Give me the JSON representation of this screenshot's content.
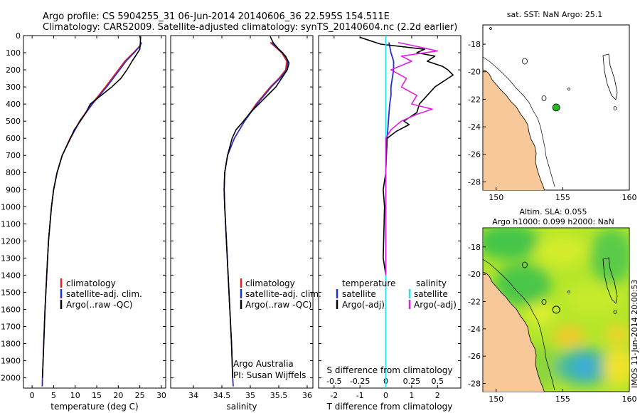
{
  "header": {
    "line1": "Argo profile: CS 5904255_31 06-Jun-2014 20140606_36 22.595S 154.511E",
    "line2": "Climatology: CARS2009. Satellite-adjusted climatology: synTS_20140604.nc (2.2d earlier)"
  },
  "colors": {
    "climatology": "#e8201c",
    "satellite": "#1e2fd6",
    "argo": "#000000",
    "salinity_sat": "#22e6e6",
    "salinity_argo": "#e020e0",
    "land": "#f7c99a"
  },
  "credit": {
    "institution": "Argo Australia",
    "pi": "PI: Susan Wijffels"
  },
  "timestamp": "IMOS 11-Jun-2014 20:00:53",
  "chart_data": [
    {
      "id": "temperature",
      "type": "line",
      "xlabel": "temperature (deg C)",
      "ylabel": "",
      "xlim": [
        -2,
        31
      ],
      "ylim": [
        2060,
        0
      ],
      "xticks": [
        0,
        5,
        10,
        15,
        20,
        25,
        30
      ],
      "yticks": [
        0,
        100,
        200,
        300,
        400,
        500,
        600,
        700,
        800,
        900,
        1000,
        1100,
        1200,
        1300,
        1400,
        1500,
        1600,
        1700,
        1800,
        1900,
        2000
      ],
      "legend": [
        "climatology",
        "satellite-adj. clim.",
        "Argo(..raw -QC)"
      ],
      "series": [
        {
          "name": "climatology",
          "color": "#e8201c",
          "depth": [
            40,
            60,
            100,
            150,
            200,
            300,
            400,
            500,
            600,
            700,
            800,
            900,
            1000,
            1200,
            1400,
            1600,
            1800,
            2000,
            2050
          ],
          "values": [
            25.3,
            25.0,
            23.5,
            21.5,
            20.0,
            17.0,
            13.8,
            11.0,
            8.8,
            7.0,
            5.8,
            5.0,
            4.5,
            3.8,
            3.4,
            3.0,
            2.7,
            2.4,
            2.35
          ]
        },
        {
          "name": "satellite-adj. clim.",
          "color": "#1e2fd6",
          "depth": [
            40,
            60,
            100,
            150,
            200,
            300,
            400,
            500,
            600,
            700,
            800,
            900,
            1000,
            1200,
            1400,
            1600,
            1800,
            2000,
            2050
          ],
          "values": [
            25.4,
            25.1,
            23.7,
            21.8,
            20.3,
            17.3,
            14.0,
            11.1,
            8.9,
            7.0,
            5.8,
            5.0,
            4.5,
            3.8,
            3.4,
            3.0,
            2.7,
            2.4,
            2.35
          ]
        },
        {
          "name": "Argo(..raw -QC)",
          "color": "#000000",
          "depth": [
            5,
            50,
            80,
            100,
            150,
            200,
            250,
            300,
            350,
            400,
            450,
            500,
            550,
            600,
            700,
            800,
            900,
            1000,
            1200,
            1400,
            1600,
            1800,
            2000
          ],
          "values": [
            25.2,
            25.1,
            25.0,
            24.5,
            23.2,
            22.0,
            20.6,
            18.5,
            16.0,
            13.5,
            12.5,
            11.2,
            9.8,
            8.9,
            7.0,
            5.8,
            5.0,
            4.5,
            3.8,
            3.4,
            3.0,
            2.7,
            2.4
          ]
        }
      ]
    },
    {
      "id": "salinity",
      "type": "line",
      "xlabel": "salinity",
      "xlim": [
        33.6,
        36.1
      ],
      "ylim": [
        2060,
        0
      ],
      "xticks": [
        34,
        34.5,
        35,
        35.5,
        36
      ],
      "legend": [
        "climatology",
        "satellite-adj. clim.",
        "Argo(..raw -QC)"
      ],
      "series": [
        {
          "name": "climatology",
          "color": "#e8201c",
          "depth": [
            40,
            100,
            150,
            200,
            250,
            300,
            400,
            500,
            600,
            700,
            800,
            900,
            1000,
            1200,
            1400,
            1600,
            1800,
            2000,
            2050
          ],
          "values": [
            35.35,
            35.55,
            35.64,
            35.62,
            35.5,
            35.35,
            35.1,
            34.9,
            34.72,
            34.6,
            34.55,
            34.54,
            34.55,
            34.58,
            34.61,
            34.64,
            34.67,
            34.69,
            34.7
          ]
        },
        {
          "name": "satellite-adj. clim.",
          "color": "#1e2fd6",
          "depth": [
            40,
            100,
            150,
            200,
            250,
            300,
            400,
            500,
            600,
            700,
            800,
            900,
            1000,
            1200,
            1400,
            1600,
            1800,
            2000,
            2050
          ],
          "values": [
            35.37,
            35.57,
            35.66,
            35.64,
            35.52,
            35.37,
            35.12,
            34.9,
            34.72,
            34.6,
            34.55,
            34.54,
            34.55,
            34.58,
            34.61,
            34.64,
            34.67,
            34.69,
            34.7
          ]
        },
        {
          "name": "Argo(..raw -QC)",
          "color": "#000000",
          "depth": [
            5,
            40,
            80,
            120,
            160,
            200,
            250,
            300,
            350,
            400,
            450,
            500,
            550,
            600,
            700,
            800,
            900,
            1000,
            1200,
            1400,
            1600,
            1800,
            2000
          ],
          "values": [
            35.35,
            35.4,
            35.5,
            35.62,
            35.68,
            35.65,
            35.55,
            35.45,
            35.3,
            35.15,
            35.0,
            34.88,
            34.75,
            34.68,
            34.6,
            34.55,
            34.54,
            34.55,
            34.58,
            34.61,
            34.64,
            34.67,
            34.69
          ]
        }
      ]
    },
    {
      "id": "differences",
      "type": "line",
      "xlabel": "T difference from climatology",
      "xlabel_top": "S difference from climatology",
      "xlim": [
        -2.6,
        2.9
      ],
      "ylim": [
        2060,
        0
      ],
      "xticks_T": [
        -2,
        -1,
        0,
        1,
        2
      ],
      "xticks_S": [
        -0.5,
        -0.25,
        0,
        0.25,
        0.5
      ],
      "legend_left_title": "temperature",
      "legend_right_title": "salinity",
      "legend": [
        "satellite",
        "Argo(-adj)",
        "satellite",
        "Argo(-adj)"
      ],
      "series": [
        {
          "name": "temperature satellite",
          "color": "#1e2fd6",
          "depth": [
            40,
            100,
            150,
            200,
            250,
            300,
            350,
            400,
            500,
            600,
            700,
            800,
            900,
            1000,
            1200,
            1400
          ],
          "values": [
            0.12,
            0.2,
            0.3,
            0.3,
            0.25,
            0.2,
            0.2,
            0.15,
            0.1,
            0.05,
            0.02,
            0.0,
            0.0,
            0.0,
            0.0,
            0.0
          ]
        },
        {
          "name": "temperature Argo(-adj)",
          "color": "#000000",
          "depth": [
            10,
            50,
            80,
            100,
            120,
            150,
            180,
            200,
            230,
            260,
            300,
            350,
            400,
            450,
            500,
            520,
            560,
            600,
            700,
            800,
            900,
            1000,
            1300,
            1400
          ],
          "values": [
            -1.0,
            -0.2,
            1.5,
            1.2,
            1.9,
            1.6,
            2.2,
            2.4,
            2.6,
            2.3,
            1.9,
            1.6,
            1.3,
            1.2,
            0.7,
            0.9,
            0.4,
            0.05,
            0.02,
            0.0,
            -0.1,
            -0.05,
            -0.1,
            0.0
          ]
        },
        {
          "name": "salinity satellite",
          "color": "#22e6e6",
          "depth": [
            0,
            100,
            200,
            400,
            600,
            800,
            1000,
            1200,
            1400,
            1600,
            1800,
            2000,
            2060
          ],
          "values": [
            0.0,
            0.0,
            0.0,
            0.0,
            0.0,
            0.0,
            0.0,
            0.0,
            0.0,
            0.0,
            0.0,
            0.0,
            0.0
          ]
        },
        {
          "name": "salinity Argo(-adj)",
          "color": "#e020e0",
          "depth": [
            40,
            70,
            90,
            120,
            150,
            200,
            250,
            300,
            350,
            400,
            430,
            460,
            500,
            550,
            600,
            700,
            800,
            900,
            1000,
            1200,
            1400
          ],
          "values": [
            0.12,
            0.35,
            0.5,
            0.15,
            0.25,
            0.05,
            0.2,
            0.15,
            0.3,
            0.25,
            0.45,
            0.3,
            0.15,
            0.05,
            0.0,
            0.0,
            0.0,
            0.0,
            0.0,
            0.0,
            0.0
          ]
        }
      ]
    },
    {
      "id": "sst_map",
      "type": "scatter",
      "title": "sat. SST: NaN Argo: 25.1",
      "xlim": [
        149,
        160
      ],
      "ylim": [
        -28.6,
        -16.6
      ],
      "xticks": [
        150,
        155,
        160
      ],
      "yticks": [
        -18,
        -20,
        -22,
        -24,
        -26,
        -28
      ],
      "points": [
        {
          "name": "Argo profile",
          "lon": 154.511,
          "lat": -22.595,
          "color": "#22bb22"
        }
      ]
    },
    {
      "id": "sla_map",
      "type": "heatmap",
      "title_line1": "Altim. SLA: 0.055",
      "title_line2": "Argo h1000: 0.099 h2000: NaN",
      "xlim": [
        149,
        160
      ],
      "ylim": [
        -28.6,
        -16.6
      ],
      "xticks": [
        150,
        155,
        160
      ],
      "yticks": [
        -18,
        -20,
        -22,
        -24,
        -26,
        -28
      ],
      "points": [
        {
          "name": "Argo profile",
          "lon": 154.511,
          "lat": -22.595
        }
      ]
    }
  ]
}
